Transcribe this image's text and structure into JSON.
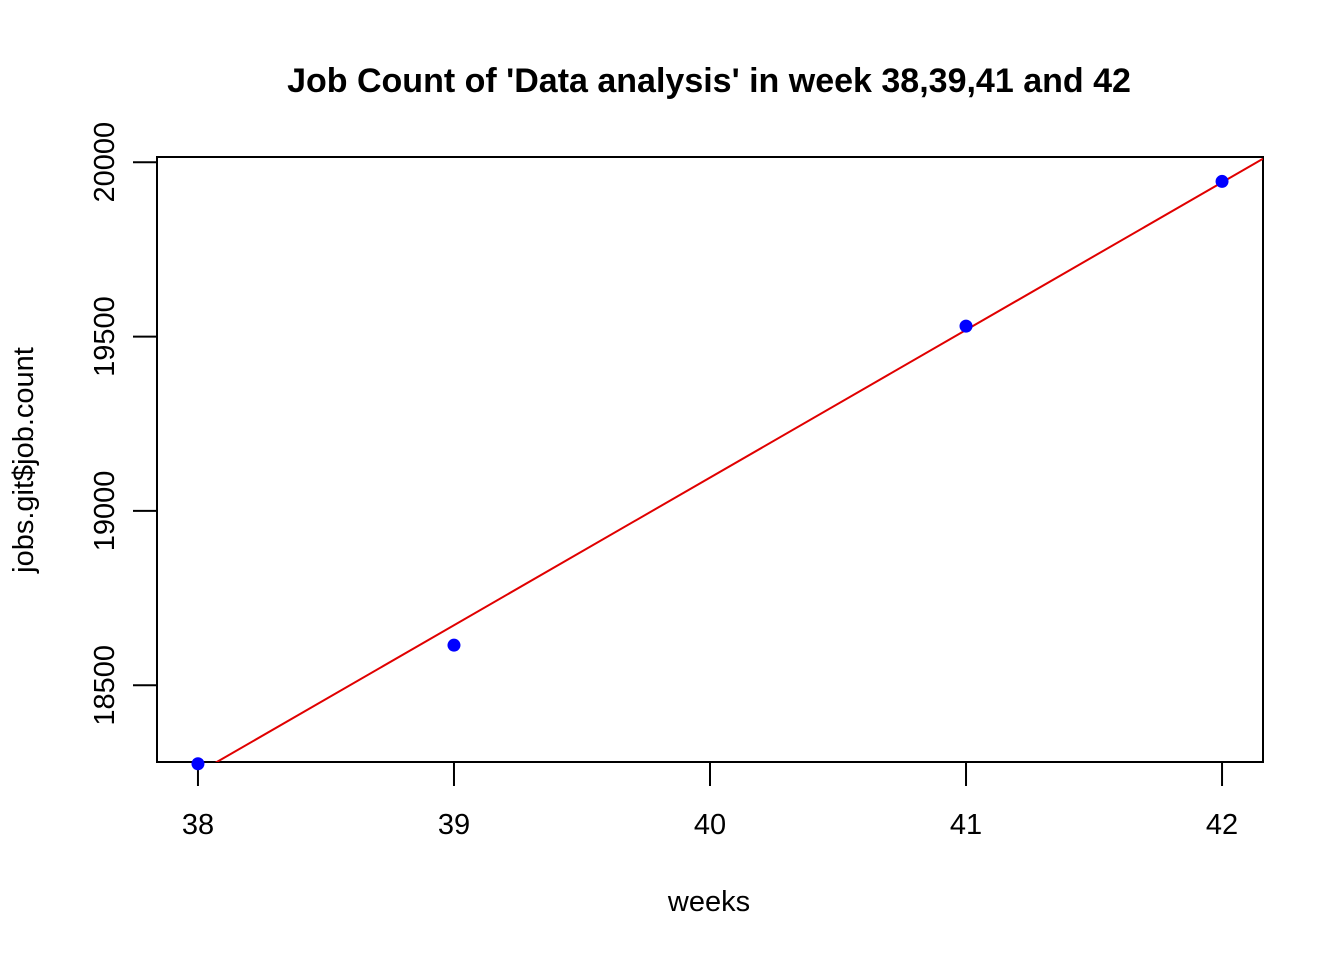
{
  "chart_data": {
    "type": "scatter",
    "title": "Job Count of 'Data analysis' in week 38,39,41 and 42",
    "xlabel": "weeks",
    "ylabel": "jobs.git$job.count",
    "x_ticks": [
      38,
      39,
      40,
      41,
      42
    ],
    "y_ticks": [
      18500,
      19000,
      19500,
      20000
    ],
    "xlim": [
      37.84,
      42.16
    ],
    "ylim": [
      18280,
      20015
    ],
    "grid": false,
    "points": [
      {
        "x": 38,
        "y": 18275
      },
      {
        "x": 39,
        "y": 18615
      },
      {
        "x": 41,
        "y": 19530
      },
      {
        "x": 42,
        "y": 19945
      }
    ],
    "point_color": "#0000ff",
    "fit_line": {
      "type": "linear",
      "color": "#e00000",
      "points": [
        {
          "x": 37.92,
          "y": 18215
        },
        {
          "x": 42.16,
          "y": 20010
        }
      ]
    }
  }
}
